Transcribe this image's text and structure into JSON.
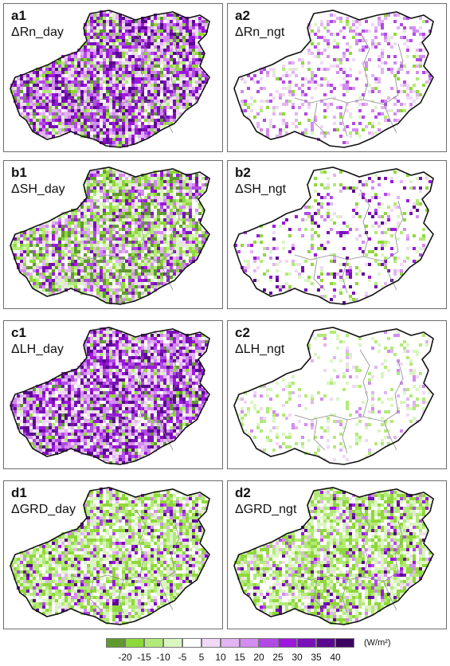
{
  "panels": [
    {
      "id": "a1",
      "title": "ΔRn_day"
    },
    {
      "id": "a2",
      "title": "ΔRn_ngt"
    },
    {
      "id": "b1",
      "title": "ΔSH_day"
    },
    {
      "id": "b2",
      "title": "ΔSH_ngt"
    },
    {
      "id": "c1",
      "title": "ΔLH_day"
    },
    {
      "id": "c2",
      "title": "ΔLH_ngt"
    },
    {
      "id": "d1",
      "title": "ΔGRD_day"
    },
    {
      "id": "d2",
      "title": "ΔGRD_ngt"
    }
  ],
  "legend": {
    "colors": [
      "#5f9a2f",
      "#8fd83a",
      "#b2ea78",
      "#dbf5c1",
      "#ffffff",
      "#f0d9f5",
      "#e2b4f2",
      "#d38cf0",
      "#b24ae6",
      "#9d18dd",
      "#7a10b8",
      "#5a088d",
      "#3c0260"
    ],
    "ticks": [
      "-20",
      "-15",
      "-10",
      "-5",
      "5",
      "10",
      "15",
      "20",
      "25",
      "30",
      "35",
      "40"
    ],
    "unit": "(W/m²)"
  }
}
